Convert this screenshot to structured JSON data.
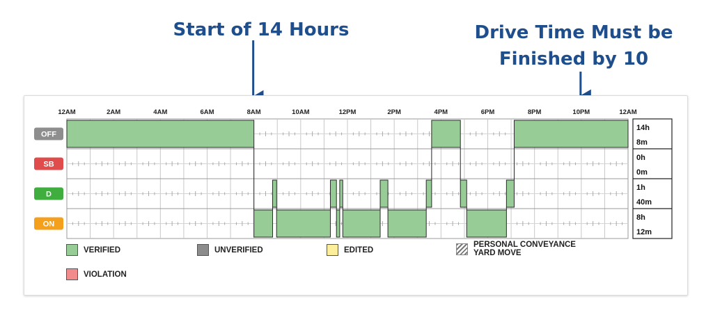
{
  "annotations": {
    "start": "Start of 14 Hours",
    "finish_line1": "Drive Time Must be",
    "finish_line2": "Finished by 10"
  },
  "colors": {
    "annotation": "#1f4e8c",
    "verified": "#97cc97",
    "unverified": "#8c8c8c",
    "edited": "#fcee9a",
    "violation": "#f28c8c",
    "status_off": "#8e8e8e",
    "status_sb": "#e04b4b",
    "status_d": "#3fae3f",
    "status_on": "#f4a01c"
  },
  "legend": {
    "verified": "VERIFIED",
    "unverified": "UNVERIFIED",
    "edited": "EDITED",
    "personal_conveyance": "PERSONAL CONVEYANCE",
    "yard_move": "YARD MOVE",
    "violation": "VIOLATION"
  },
  "chart_data": {
    "type": "bar",
    "title": "",
    "x_axis": {
      "range_hours": [
        0,
        24
      ],
      "tick_labels": [
        "12AM",
        "2AM",
        "4AM",
        "6AM",
        "8AM",
        "10AM",
        "12PM",
        "2PM",
        "4PM",
        "6PM",
        "8PM",
        "10PM",
        "12AM"
      ],
      "tick_hours": [
        0,
        2,
        4,
        6,
        8,
        10,
        12,
        14,
        16,
        18,
        20,
        22,
        24
      ]
    },
    "statuses": [
      {
        "code": "OFF",
        "total": [
          "14h",
          "8m"
        ]
      },
      {
        "code": "SB",
        "total": [
          "0h",
          "0m"
        ]
      },
      {
        "code": "D",
        "total": [
          "1h",
          "40m"
        ]
      },
      {
        "code": "ON",
        "total": [
          "8h",
          "12m"
        ]
      }
    ],
    "segments": [
      {
        "status": "OFF",
        "start": 0.0,
        "end": 8.0
      },
      {
        "status": "ON",
        "start": 8.0,
        "end": 8.8
      },
      {
        "status": "D",
        "start": 8.8,
        "end": 8.97
      },
      {
        "status": "ON",
        "start": 8.97,
        "end": 11.27
      },
      {
        "status": "D",
        "start": 11.27,
        "end": 11.53
      },
      {
        "status": "ON",
        "start": 11.53,
        "end": 11.67
      },
      {
        "status": "D",
        "start": 11.67,
        "end": 11.8
      },
      {
        "status": "ON",
        "start": 11.8,
        "end": 13.4
      },
      {
        "status": "D",
        "start": 13.4,
        "end": 13.73
      },
      {
        "status": "ON",
        "start": 13.73,
        "end": 15.37
      },
      {
        "status": "D",
        "start": 15.37,
        "end": 15.6
      },
      {
        "status": "OFF",
        "start": 15.6,
        "end": 16.83
      },
      {
        "status": "D",
        "start": 16.83,
        "end": 17.1
      },
      {
        "status": "ON",
        "start": 17.1,
        "end": 18.8
      },
      {
        "status": "D",
        "start": 18.8,
        "end": 19.13
      },
      {
        "status": "OFF",
        "start": 19.13,
        "end": 24.0
      }
    ],
    "annotation_hours": {
      "start": 8,
      "finish": 22
    }
  }
}
